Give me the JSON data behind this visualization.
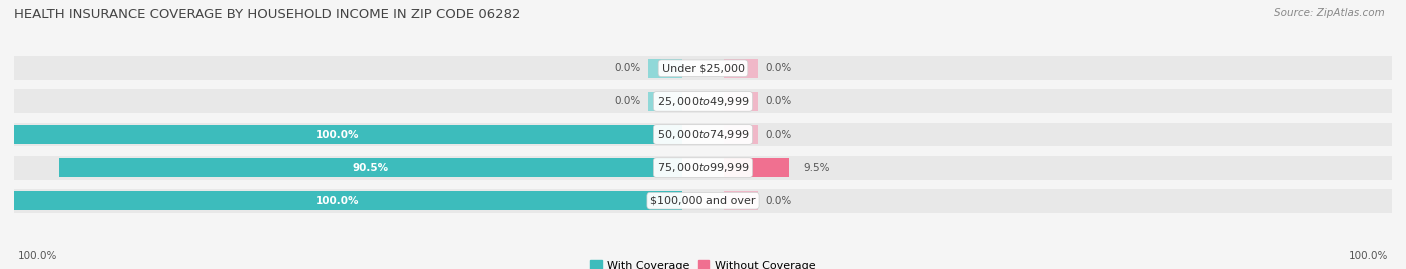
{
  "title": "HEALTH INSURANCE COVERAGE BY HOUSEHOLD INCOME IN ZIP CODE 06282",
  "source": "Source: ZipAtlas.com",
  "categories": [
    "Under $25,000",
    "$25,000 to $49,999",
    "$50,000 to $74,999",
    "$75,000 to $99,999",
    "$100,000 and over"
  ],
  "with_coverage": [
    0.0,
    0.0,
    100.0,
    90.5,
    100.0
  ],
  "without_coverage": [
    0.0,
    0.0,
    0.0,
    9.5,
    0.0
  ],
  "color_with": "#3dbcbc",
  "color_without": "#f07090",
  "color_with_stub": "#90d8d8",
  "color_without_stub": "#f0b8c8",
  "bg_bar": "#e8e8e8",
  "bg_figure": "#f5f5f5",
  "title_fontsize": 9.5,
  "source_fontsize": 7.5,
  "label_fontsize": 8,
  "pct_fontsize": 7.5,
  "legend_labels": [
    "With Coverage",
    "Without Coverage"
  ],
  "stub_size": 5.0,
  "bottom_pct_left": "100.0%",
  "bottom_pct_right": "100.0%"
}
